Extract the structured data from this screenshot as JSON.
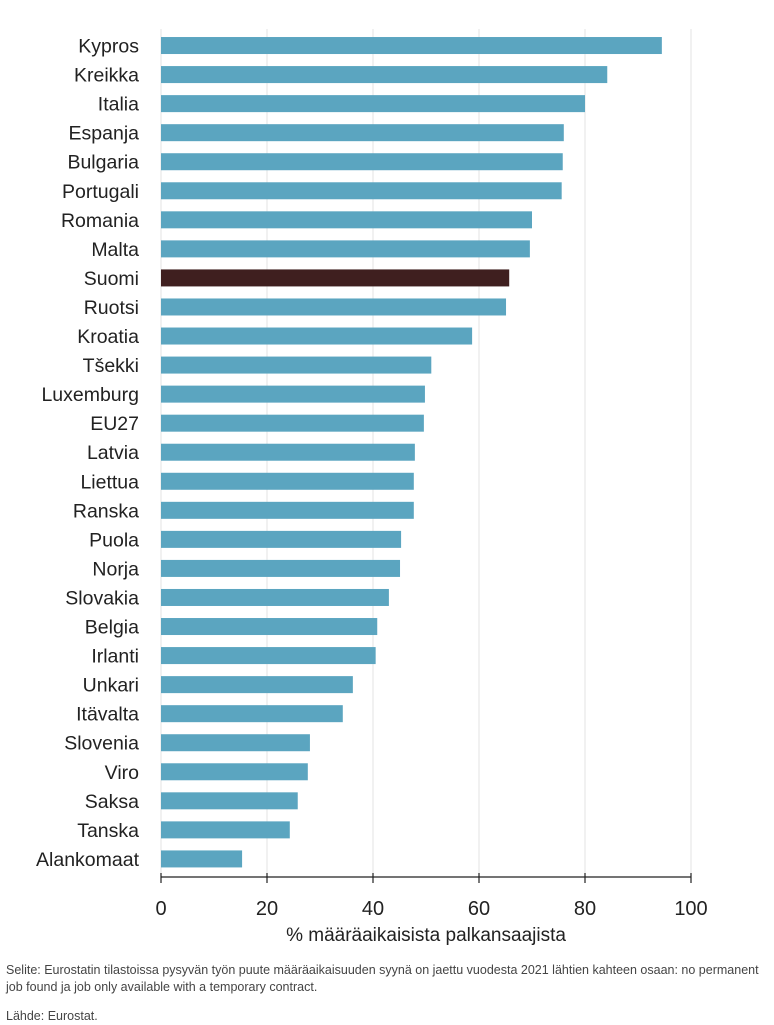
{
  "chart_data": {
    "type": "bar",
    "orientation": "horizontal",
    "title": "",
    "xlabel": "% määräaikaisista palkansaajista",
    "ylabel": "",
    "xlim": [
      0,
      100
    ],
    "xticks": [
      0,
      20,
      40,
      60,
      80,
      100
    ],
    "grid": true,
    "categories": [
      "Kypros",
      "Kreikka",
      "Italia",
      "Espanja",
      "Bulgaria",
      "Portugali",
      "Romania",
      "Malta",
      "Suomi",
      "Ruotsi",
      "Kroatia",
      "Tšekki",
      "Luxemburg",
      "EU27",
      "Latvia",
      "Liettua",
      "Ranska",
      "Puola",
      "Norja",
      "Slovakia",
      "Belgia",
      "Irlanti",
      "Unkari",
      "Itävalta",
      "Slovenia",
      "Viro",
      "Saksa",
      "Tanska",
      "Alankomaat"
    ],
    "values": [
      94.5,
      84.2,
      80.0,
      76.0,
      75.8,
      75.6,
      70.0,
      69.6,
      65.7,
      65.1,
      58.7,
      51.0,
      49.8,
      49.6,
      47.9,
      47.7,
      47.7,
      45.3,
      45.1,
      43.0,
      40.8,
      40.5,
      36.2,
      34.3,
      28.1,
      27.7,
      25.8,
      24.3,
      15.3
    ],
    "highlight": "Suomi",
    "colors": {
      "default": "#5ba5c0",
      "highlight": "#3f1f1f",
      "grid": "#e3e3e3",
      "axis": "#222222"
    }
  },
  "footer": {
    "note": "Selite: Eurostatin tilastoissa pysyvän työn puute määräaikaisuuden syynä on jaettu vuodesta 2021 lähtien kahteen osaan: no permanent job found ja job only available with a temporary contract.",
    "source": "Lähde: Eurostat."
  }
}
